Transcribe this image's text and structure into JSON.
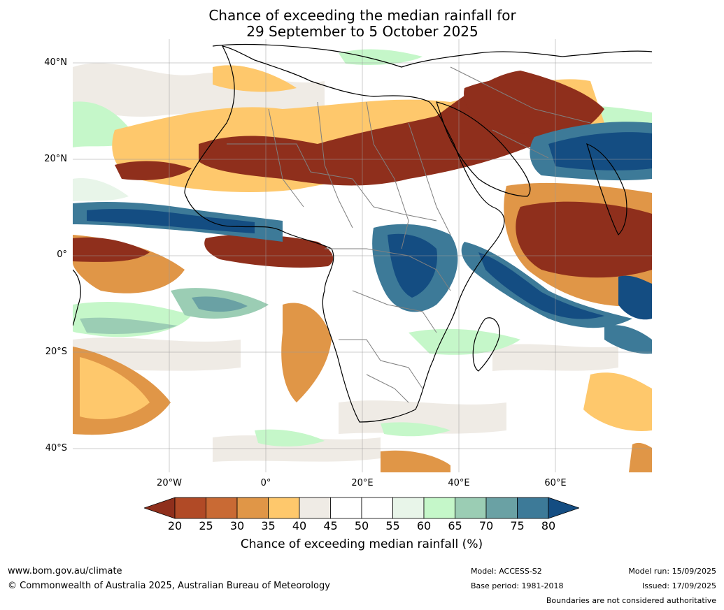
{
  "title": {
    "line1": "Chance of exceeding the median rainfall for",
    "line2": "29 September to 5 October 2025"
  },
  "map": {
    "lat_labels": [
      "40°N",
      "20°N",
      "0°",
      "20°S",
      "40°S"
    ],
    "lon_labels": [
      "20°W",
      "0°",
      "20°E",
      "40°E",
      "60°E"
    ],
    "extent": {
      "lon": [
        -40,
        80
      ],
      "lat": [
        -45,
        45
      ]
    }
  },
  "colorbar": {
    "ticks": [
      "20",
      "25",
      "30",
      "35",
      "40",
      "45",
      "50",
      "55",
      "60",
      "65",
      "70",
      "75",
      "80"
    ],
    "colors": [
      "#8f2f1c",
      "#b14a26",
      "#c96a34",
      "#e09647",
      "#fec86c",
      "#efebe5",
      "#ffffff",
      "#ffffff",
      "#e8f5e9",
      "#c5f7c9",
      "#9bcdb4",
      "#6aa1a4",
      "#3d7a98",
      "#144d82"
    ],
    "label": "Chance of exceeding median rainfall (%)"
  },
  "footer": {
    "website": "www.bom.gov.au/climate",
    "copyright": "© Commonwealth of Australia 2025, Australian Bureau of Meteorology",
    "model": "Model: ACCESS-S2",
    "base_period": "Base period: 1981-2018",
    "model_run": "Model run: 15/09/2025",
    "issued": "Issued: 17/09/2025",
    "disclaimer": "Boundaries are not considered authoritative"
  }
}
